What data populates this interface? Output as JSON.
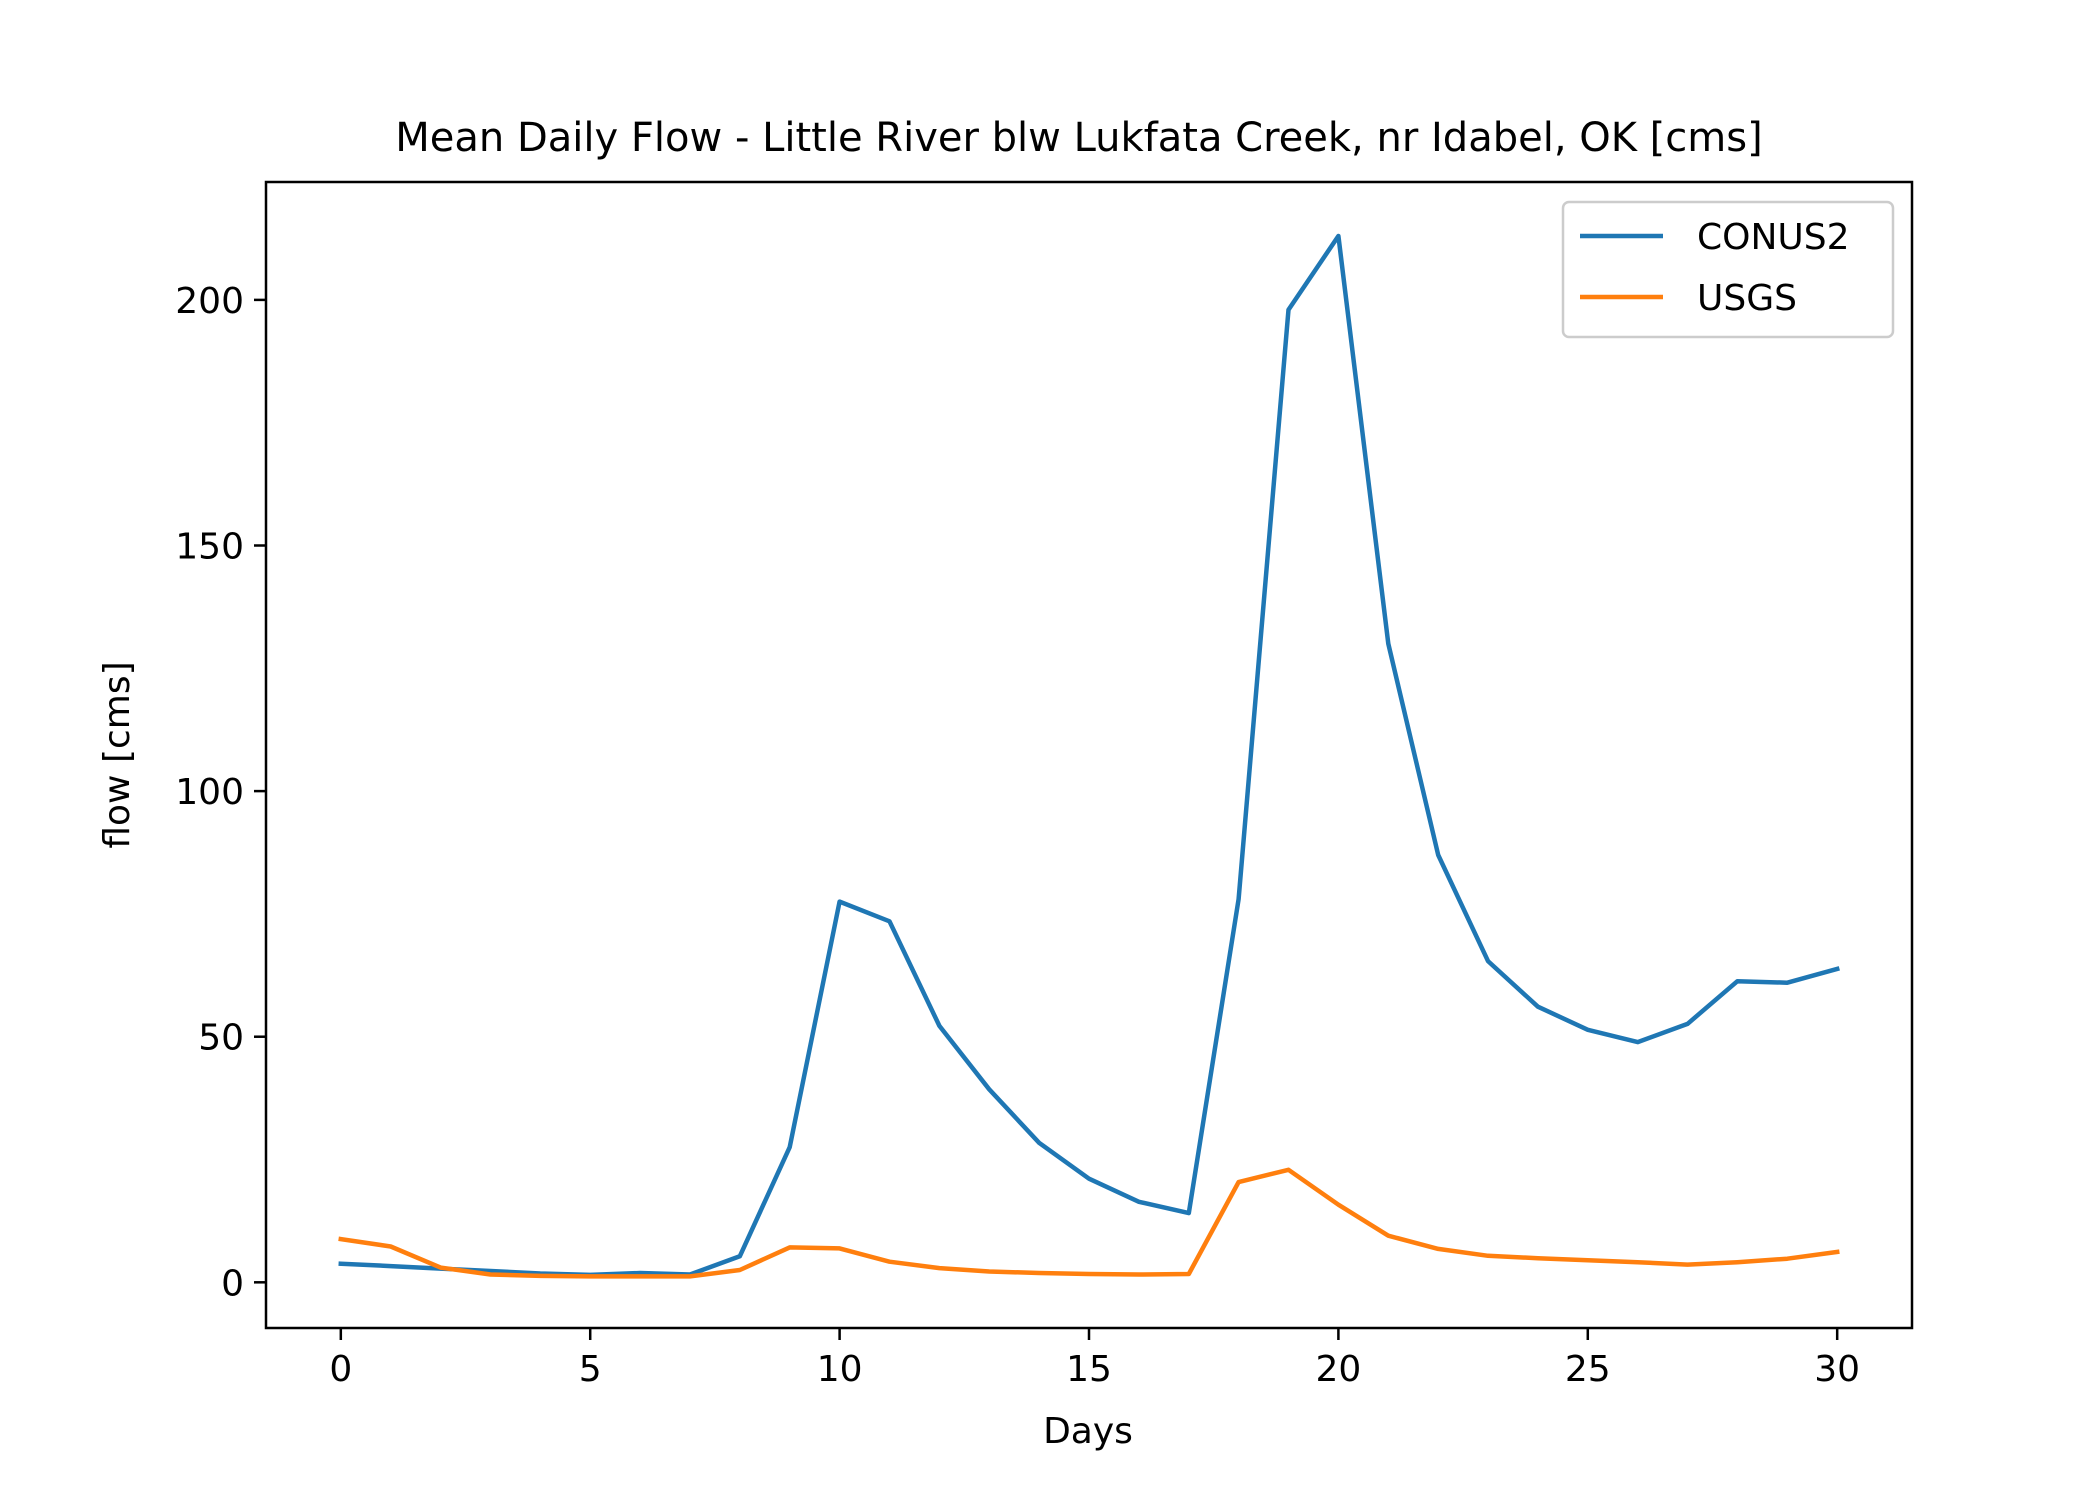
{
  "chart_data": {
    "type": "line",
    "title": "Mean Daily Flow - Little River blw Lukfata Creek, nr Idabel, OK [cms]",
    "xlabel": "Days",
    "ylabel": "flow [cms]",
    "xlim": [
      -1.5,
      31.5
    ],
    "ylim": [
      -9.3,
      224
    ],
    "xticks": [
      "0",
      "5",
      "10",
      "15",
      "20",
      "25",
      "30"
    ],
    "yticks": [
      "0",
      "50",
      "100",
      "150",
      "200"
    ],
    "legend_position": "upper right",
    "grid": false,
    "x": [
      0,
      1,
      2,
      3,
      4,
      5,
      6,
      7,
      8,
      9,
      10,
      11,
      12,
      13,
      14,
      15,
      16,
      17,
      18,
      19,
      20,
      21,
      22,
      23,
      24,
      25,
      26,
      27,
      28,
      29,
      30
    ],
    "series": [
      {
        "name": "CONUS2",
        "color": "#1f77b4",
        "values": [
          3.8,
          3.3,
          2.8,
          2.3,
          1.8,
          1.5,
          1.9,
          1.6,
          5.3,
          27.5,
          77.5,
          73.5,
          52.2,
          39.3,
          28.4,
          21.1,
          16.4,
          14.1,
          78.0,
          198.0,
          213.0,
          130.0,
          87.0,
          65.4,
          56.1,
          51.4,
          48.9,
          52.6,
          61.3,
          61.0,
          63.8
        ]
      },
      {
        "name": "USGS",
        "color": "#ff7f0e",
        "values": [
          8.8,
          7.3,
          3.0,
          1.6,
          1.3,
          1.2,
          1.2,
          1.2,
          2.5,
          7.1,
          6.9,
          4.2,
          2.9,
          2.2,
          1.9,
          1.7,
          1.6,
          1.7,
          20.4,
          22.9,
          15.8,
          9.5,
          6.8,
          5.4,
          4.9,
          4.5,
          4.1,
          3.6,
          4.1,
          4.8,
          6.2
        ]
      }
    ]
  }
}
